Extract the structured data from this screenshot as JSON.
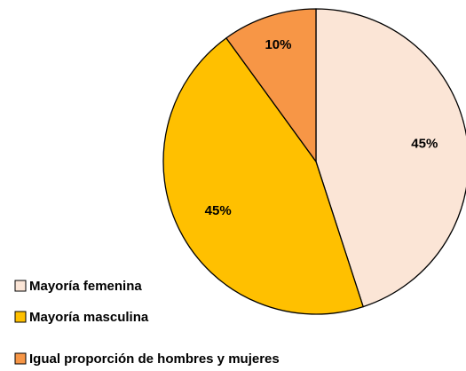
{
  "chart_data": {
    "type": "pie",
    "categories": [
      "Mayoría femenina",
      "Mayoría masculina",
      "Igual proporción de hombres y mujeres"
    ],
    "values": [
      45,
      45,
      10
    ],
    "value_labels": [
      "45%",
      "45%",
      "10%"
    ],
    "colors": [
      "#fbe5d6",
      "#ffc000",
      "#f79646"
    ],
    "legend": "bottom-left"
  }
}
